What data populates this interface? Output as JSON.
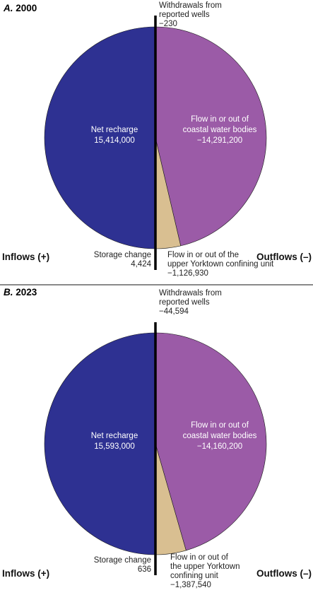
{
  "chart_data": [
    {
      "type": "pie",
      "panel_letter": "A.",
      "title": "2000",
      "left_label": "Inflows (+)",
      "right_label": "Outflows (–)",
      "slices": [
        {
          "side": "inflow",
          "label": "Net recharge",
          "display": "15,414,000",
          "value": 15414000,
          "color": "#2e3192"
        },
        {
          "side": "inflow",
          "label": "Storage change",
          "display": "4,424",
          "value": 4424,
          "color": "#2e3192"
        },
        {
          "side": "outflow",
          "label": "Withdrawals from reported wells",
          "label_lines": [
            "Withdrawals from",
            "reported wells"
          ],
          "display": "−230",
          "value": -230,
          "color": "#9b59b6"
        },
        {
          "side": "outflow",
          "label": "Flow in or out of coastal water bodies",
          "label_lines": [
            "Flow in or out of",
            "coastal water bodies"
          ],
          "display": "−14,291,200",
          "value": -14291200,
          "color": "#9b5ba7"
        },
        {
          "side": "outflow",
          "label": "Flow in or out of the upper Yorktown confining unit",
          "label_lines": [
            "Flow in or out of the",
            "upper Yorktown confining unit"
          ],
          "display": "−1,126,930",
          "value": -1126930,
          "color": "#d9bf91"
        }
      ]
    },
    {
      "type": "pie",
      "panel_letter": "B.",
      "title": "2023",
      "left_label": "Inflows (+)",
      "right_label": "Outflows (–)",
      "slices": [
        {
          "side": "inflow",
          "label": "Net recharge",
          "display": "15,593,000",
          "value": 15593000,
          "color": "#2e3192"
        },
        {
          "side": "inflow",
          "label": "Storage change",
          "display": "636",
          "value": 636,
          "color": "#2e3192"
        },
        {
          "side": "outflow",
          "label": "Withdrawals from reported wells",
          "label_lines": [
            "Withdrawals from",
            "reported wells"
          ],
          "display": "−44,594",
          "value": -44594,
          "color": "#9b59b6"
        },
        {
          "side": "outflow",
          "label": "Flow in or out of coastal water bodies",
          "label_lines": [
            "Flow in or out of",
            "coastal water bodies"
          ],
          "display": "−14,160,200",
          "value": -14160200,
          "color": "#9b5ba7"
        },
        {
          "side": "outflow",
          "label": "Flow in or out of the upper Yorktown confining unit",
          "label_lines": [
            "Flow in or out of",
            "the upper Yorktown",
            "confining unit"
          ],
          "display": "−1,387,540",
          "value": -1387540,
          "color": "#d9bf91"
        }
      ]
    }
  ]
}
